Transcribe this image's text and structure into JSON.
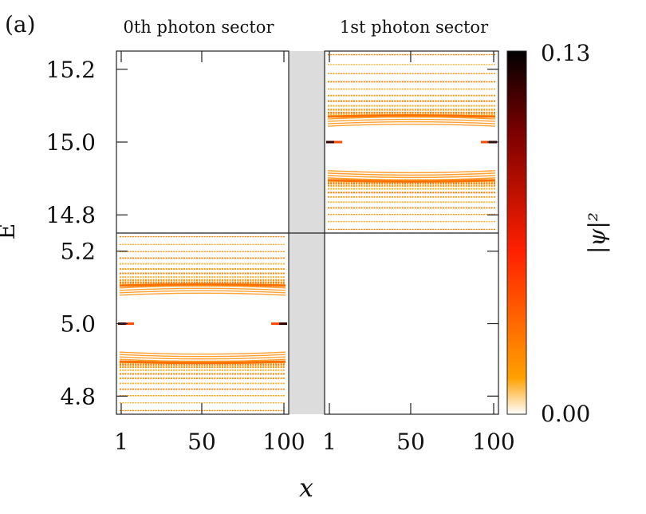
{
  "panel_label": "(a)",
  "chart_data": {
    "type": "heatmap",
    "title": "",
    "xlabel": "x",
    "ylabel": "E",
    "sectors": [
      {
        "name": "0th photon sector",
        "x_range": [
          1,
          100
        ],
        "x_ticks": [
          "1",
          "50",
          "100"
        ],
        "panels": [
          {
            "y_range": [
              14.75,
              15.25
            ],
            "y_ticks": [],
            "bands": [],
            "edge_states": []
          },
          {
            "y_range": [
              4.75,
              5.25
            ],
            "y_ticks": [
              "4.8",
              "5.0",
              "5.2"
            ],
            "bands": [
              {
                "e_min": 4.76,
                "e_max": 4.895,
                "dense_edge": 4.895
              },
              {
                "e_min": 5.105,
                "e_max": 5.24,
                "dense_edge": 5.105
              }
            ],
            "edge_states": [
              {
                "energy": 5.0,
                "sites": [
                  1,
                  100
                ]
              }
            ]
          }
        ]
      },
      {
        "name": "1st photon sector",
        "x_range": [
          1,
          100
        ],
        "x_ticks": [
          "1",
          "50",
          "100"
        ],
        "panels": [
          {
            "y_range": [
              14.75,
              15.25
            ],
            "y_ticks": [
              "14.8",
              "15.0",
              "15.2"
            ],
            "bands": [
              {
                "e_min": 14.76,
                "e_max": 14.895,
                "dense_edge": 14.895
              },
              {
                "e_min": 15.07,
                "e_max": 15.24,
                "dense_edge": 15.07
              }
            ],
            "edge_states": [
              {
                "energy": 15.0,
                "sites": [
                  1,
                  100
                ]
              }
            ]
          },
          {
            "y_range": [
              4.75,
              5.25
            ],
            "y_ticks": [],
            "bands": [],
            "edge_states": []
          }
        ]
      }
    ],
    "colorbar": {
      "label": "|ψ|²",
      "min": 0.0,
      "max": 0.13,
      "min_label": "0.00",
      "max_label": "0.13",
      "colors": [
        "#ffffff",
        "#ffa000",
        "#ff2000",
        "#7a0000",
        "#000000"
      ]
    },
    "grid": false,
    "legend": "none"
  }
}
